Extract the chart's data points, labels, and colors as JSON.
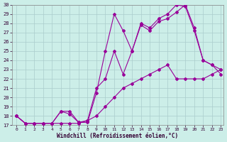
{
  "xlabel": "Windchill (Refroidissement éolien,°C)",
  "xlim_min": -0.5,
  "xlim_max": 23.3,
  "ylim_min": 17,
  "ylim_max": 30,
  "yticks": [
    17,
    18,
    19,
    20,
    21,
    22,
    23,
    24,
    25,
    26,
    27,
    28,
    29,
    30
  ],
  "xticks": [
    0,
    1,
    2,
    3,
    4,
    5,
    6,
    7,
    8,
    9,
    10,
    11,
    12,
    13,
    14,
    15,
    16,
    17,
    18,
    19,
    20,
    21,
    22,
    23
  ],
  "line_color": "#990099",
  "bg_color": "#cceee8",
  "grid_color": "#aacccc",
  "line1_x": [
    0,
    1,
    2,
    3,
    4,
    5,
    6,
    7,
    8,
    9,
    10,
    11,
    12,
    13,
    14,
    15,
    16,
    17,
    18,
    19,
    20,
    21,
    22,
    23
  ],
  "line1_y": [
    18.0,
    17.2,
    17.2,
    17.2,
    17.2,
    17.2,
    17.2,
    17.2,
    17.5,
    18.0,
    19.0,
    20.0,
    21.0,
    21.5,
    22.0,
    22.5,
    23.0,
    23.5,
    22.0,
    22.0,
    22.0,
    22.0,
    22.5,
    23.0
  ],
  "line2_x": [
    0,
    1,
    2,
    3,
    4,
    5,
    6,
    7,
    8,
    9,
    10,
    11,
    12,
    13,
    14,
    15,
    16,
    17,
    18,
    19,
    20,
    21,
    22,
    23
  ],
  "line2_y": [
    18.0,
    17.2,
    17.2,
    17.2,
    17.2,
    18.5,
    18.2,
    17.3,
    17.5,
    21.0,
    22.0,
    25.0,
    22.5,
    25.0,
    27.8,
    27.2,
    28.2,
    28.5,
    29.2,
    30.0,
    27.5,
    24.0,
    23.5,
    22.5
  ],
  "line3_x": [
    0,
    1,
    2,
    3,
    4,
    5,
    6,
    7,
    8,
    9,
    10,
    11,
    12,
    13,
    14,
    15,
    16,
    17,
    18,
    19,
    20,
    21,
    22,
    23
  ],
  "line3_y": [
    18.0,
    17.2,
    17.2,
    17.2,
    17.2,
    18.5,
    18.5,
    17.3,
    17.3,
    20.5,
    25.0,
    29.0,
    27.2,
    25.0,
    28.0,
    27.5,
    28.5,
    29.0,
    30.0,
    29.8,
    27.2,
    24.0,
    23.5,
    23.0
  ]
}
